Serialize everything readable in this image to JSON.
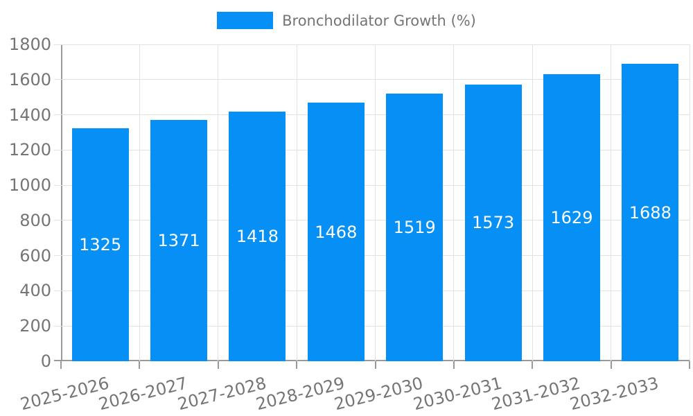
{
  "chart_data": {
    "type": "bar",
    "legend": "Bronchodilator Growth (%)",
    "legend_position": "top",
    "categories": [
      "2025-2026",
      "2026-2027",
      "2027-2028",
      "2028-2029",
      "2029-2030",
      "2030-2031",
      "2031-2032",
      "2032-2033"
    ],
    "values": [
      1325,
      1371,
      1418,
      1468,
      1519,
      1573,
      1629,
      1688
    ],
    "value_labels_shown_inside_bars": true,
    "xlabel": "",
    "ylabel": "",
    "ylim": [
      0,
      1800
    ],
    "ytick_step": 200,
    "grid": true,
    "bar_color": "#0690F5",
    "bar_label_color": "#ffffff",
    "axis_text_color": "#757575",
    "grid_color": "#e2e2e2",
    "axis_line_color": "#9a9a9a"
  }
}
